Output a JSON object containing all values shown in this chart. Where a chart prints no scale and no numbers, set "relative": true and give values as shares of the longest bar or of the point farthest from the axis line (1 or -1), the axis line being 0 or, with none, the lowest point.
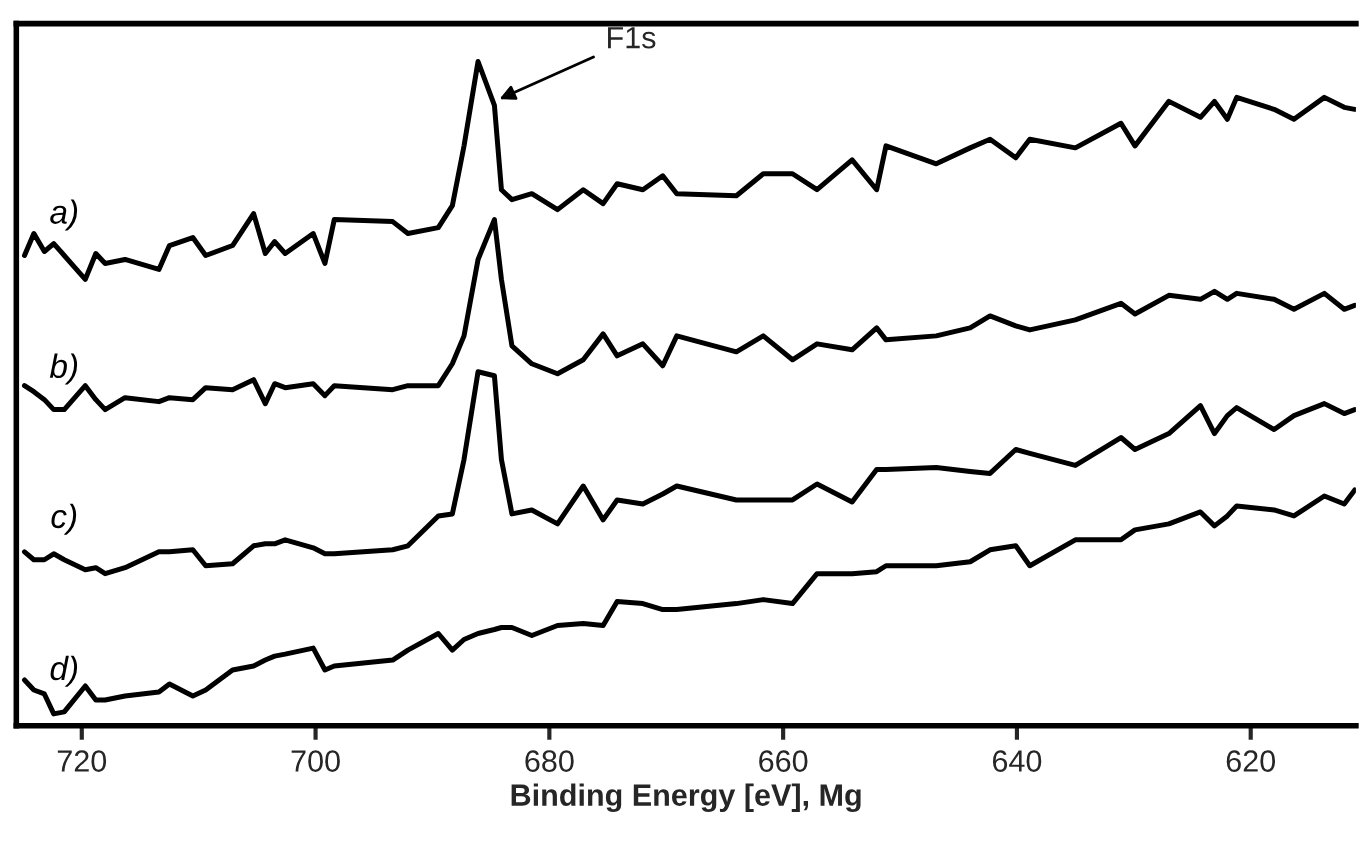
{
  "chart_data": {
    "type": "line",
    "relative": true,
    "xlabel": "Binding Energy [eV], Mg",
    "xlim": [
      725.6,
      611
    ],
    "xticks": [
      720,
      700,
      680,
      660,
      640,
      620
    ],
    "grid": false,
    "legend": false,
    "marker": "none",
    "line_style": "solid",
    "x": [
      724.9,
      724.1,
      723.2,
      722.4,
      721.5,
      719.7,
      718.8,
      718.0,
      716.3,
      713.4,
      712.5,
      710.5,
      709.4,
      707.1,
      705.3,
      704.3,
      703.5,
      702.6,
      700.2,
      699.2,
      698.4,
      693.4,
      692.1,
      689.5,
      688.3,
      687.3,
      686.1,
      684.7,
      684.1,
      683.2,
      681.5,
      679.3,
      677.1,
      675.4,
      674.2,
      672.0,
      670.3,
      669.1,
      664.0,
      661.7,
      659.2,
      657.1,
      654.1,
      652.0,
      651.2,
      646.9,
      644.0,
      642.3,
      640.1,
      638.9,
      635.0,
      631.1,
      629.9,
      627.0,
      624.3,
      623.1,
      622.0,
      621.2,
      618.0,
      616.3,
      613.7,
      612.0,
      611.1
    ],
    "series": [
      {
        "name": "a)",
        "color": "#000000",
        "values": [
          0.708,
          0.741,
          0.714,
          0.726,
          0.708,
          0.672,
          0.711,
          0.696,
          0.702,
          0.687,
          0.723,
          0.735,
          0.708,
          0.723,
          0.771,
          0.711,
          0.729,
          0.711,
          0.741,
          0.696,
          0.762,
          0.759,
          0.741,
          0.75,
          0.783,
          0.873,
          1.0,
          0.934,
          0.807,
          0.792,
          0.801,
          0.777,
          0.807,
          0.786,
          0.816,
          0.807,
          0.828,
          0.801,
          0.798,
          0.831,
          0.831,
          0.807,
          0.852,
          0.807,
          0.873,
          0.846,
          0.87,
          0.883,
          0.855,
          0.883,
          0.87,
          0.907,
          0.873,
          0.94,
          0.916,
          0.94,
          0.913,
          0.946,
          0.928,
          0.913,
          0.946,
          0.931,
          0.928
        ]
      },
      {
        "name": "b)",
        "color": "#000000",
        "values": [
          0.512,
          0.503,
          0.491,
          0.476,
          0.476,
          0.512,
          0.491,
          0.476,
          0.494,
          0.488,
          0.494,
          0.491,
          0.509,
          0.506,
          0.521,
          0.485,
          0.515,
          0.509,
          0.515,
          0.497,
          0.512,
          0.506,
          0.512,
          0.512,
          0.545,
          0.587,
          0.702,
          0.762,
          0.672,
          0.572,
          0.545,
          0.53,
          0.551,
          0.59,
          0.557,
          0.575,
          0.542,
          0.587,
          0.563,
          0.587,
          0.551,
          0.575,
          0.566,
          0.599,
          0.581,
          0.587,
          0.599,
          0.617,
          0.602,
          0.596,
          0.611,
          0.636,
          0.62,
          0.648,
          0.642,
          0.654,
          0.642,
          0.651,
          0.642,
          0.627,
          0.651,
          0.627,
          0.633
        ]
      },
      {
        "name": "c)",
        "color": "#000000",
        "values": [
          0.262,
          0.25,
          0.25,
          0.259,
          0.25,
          0.235,
          0.238,
          0.229,
          0.238,
          0.262,
          0.262,
          0.265,
          0.241,
          0.244,
          0.271,
          0.274,
          0.274,
          0.28,
          0.268,
          0.259,
          0.259,
          0.265,
          0.271,
          0.316,
          0.319,
          0.401,
          0.533,
          0.527,
          0.401,
          0.319,
          0.325,
          0.304,
          0.361,
          0.31,
          0.34,
          0.334,
          0.349,
          0.361,
          0.34,
          0.34,
          0.34,
          0.364,
          0.337,
          0.386,
          0.386,
          0.389,
          0.383,
          0.38,
          0.416,
          0.41,
          0.392,
          0.434,
          0.416,
          0.44,
          0.482,
          0.44,
          0.467,
          0.479,
          0.446,
          0.467,
          0.485,
          0.47,
          0.476
        ]
      },
      {
        "name": "d)",
        "color": "#000000",
        "values": [
          0.069,
          0.054,
          0.048,
          0.018,
          0.021,
          0.06,
          0.039,
          0.039,
          0.045,
          0.051,
          0.063,
          0.045,
          0.054,
          0.084,
          0.09,
          0.099,
          0.105,
          0.108,
          0.117,
          0.084,
          0.09,
          0.099,
          0.114,
          0.139,
          0.114,
          0.13,
          0.139,
          0.145,
          0.148,
          0.148,
          0.136,
          0.151,
          0.154,
          0.151,
          0.187,
          0.184,
          0.175,
          0.175,
          0.184,
          0.19,
          0.184,
          0.229,
          0.229,
          0.232,
          0.241,
          0.241,
          0.247,
          0.265,
          0.271,
          0.241,
          0.28,
          0.28,
          0.295,
          0.304,
          0.322,
          0.301,
          0.316,
          0.331,
          0.325,
          0.316,
          0.346,
          0.334,
          0.355
        ]
      }
    ],
    "annotations": [
      {
        "text": "F1s",
        "x": 684.7,
        "y": 0.94
      }
    ]
  }
}
